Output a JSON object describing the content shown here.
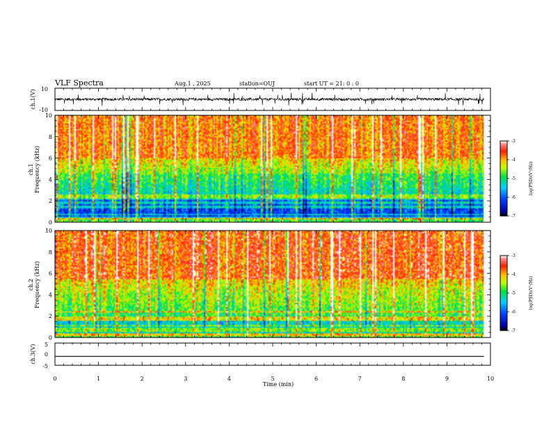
{
  "header": {
    "title": "VLF Spectra",
    "date": "Aug.1  , 2025",
    "station": "station=OUJ",
    "start_ut": "start  UT =   21: 0  : 0"
  },
  "chart_data": [
    {
      "type": "line",
      "panel": "ch1-waveform",
      "ylabel": "ch.1(V)",
      "ylim": [
        -10,
        10
      ],
      "yticks": [
        "10",
        "-10"
      ],
      "xlim": [
        0,
        10
      ],
      "baseline_value": 0,
      "noise_amplitude": 1.2,
      "spike_amplitude": 6
    },
    {
      "type": "heatmap",
      "panel": "ch1-spectrogram",
      "ylabel": "ch.1\nFrequency  (kHz)",
      "ylabel_line1": "ch.1",
      "ylabel_line2": "Frequency  (kHz)",
      "ylim": [
        0,
        10
      ],
      "yticks": [
        "0",
        "2",
        "4",
        "6",
        "8",
        "10"
      ],
      "xlim": [
        0,
        9.85
      ],
      "colorbar": {
        "label": "log(PSD)(V²/Hz)",
        "range": [
          -7,
          -3
        ],
        "ticks": [
          "-3",
          "-4",
          "-5",
          "-6",
          "-7"
        ]
      }
    },
    {
      "type": "heatmap",
      "panel": "ch2-spectrogram",
      "ylabel_line1": "ch.2",
      "ylabel_line2": "Frequency  (kHz)",
      "ylim": [
        0,
        10
      ],
      "yticks": [
        "0",
        "2",
        "4",
        "6",
        "8",
        "10"
      ],
      "xlim": [
        0,
        9.85
      ],
      "colorbar": {
        "label": "log(PSD)(V²/Hz)",
        "range": [
          -7,
          -3
        ],
        "ticks": [
          "-3",
          "-4",
          "-5",
          "-6",
          "-7"
        ]
      }
    },
    {
      "type": "line",
      "panel": "ch3-waveform",
      "ylabel": "ch.3(V)",
      "ylim": [
        -5,
        5
      ],
      "yticks": [
        "5",
        "0",
        "-5"
      ],
      "xlim": [
        0,
        10
      ],
      "x": [
        0,
        9.85
      ],
      "y": [
        -1,
        -1
      ],
      "xlabel": "Time  (min)",
      "xticks": [
        "0",
        "1",
        "2",
        "3",
        "4",
        "5",
        "6",
        "7",
        "8",
        "9",
        "10"
      ]
    }
  ],
  "colors": {
    "spec_high": "#ff2010",
    "spec_mid": "#ffff00",
    "spec_low": "#00e0ff",
    "spec_min": "#0000c8"
  }
}
